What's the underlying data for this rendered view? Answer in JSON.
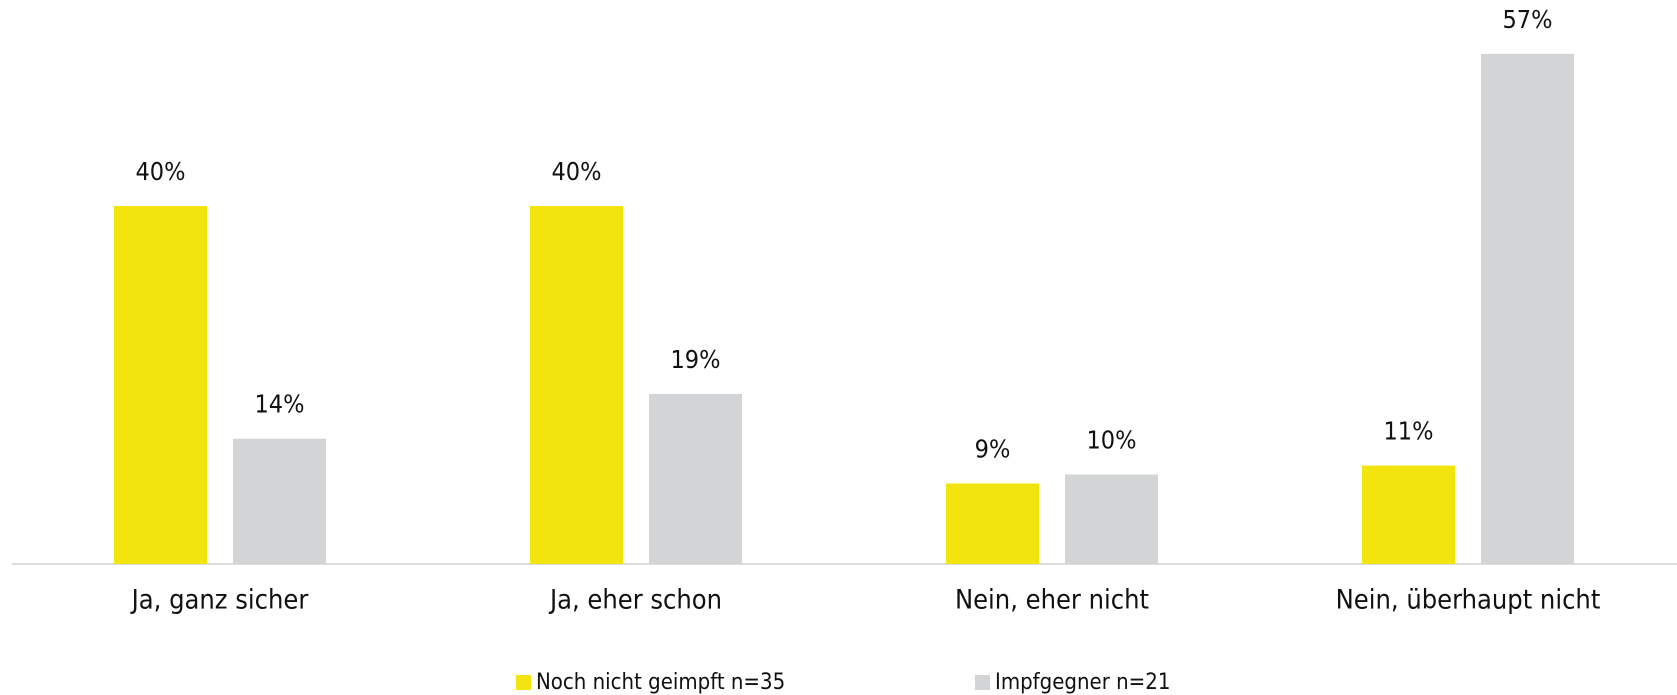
{
  "chart_data": {
    "type": "bar",
    "categories": [
      "Ja, ganz sicher",
      "Ja, eher schon",
      "Nein, eher nicht",
      "Nein, überhaupt nicht"
    ],
    "series": [
      {
        "name": "Noch nicht geimpft n=35",
        "color": "#f2e50f",
        "values": [
          40,
          40,
          9,
          11
        ],
        "value_labels": [
          "40%",
          "40%",
          "9%",
          "11%"
        ]
      },
      {
        "name": "Impfgegner n=21",
        "color": "#d3d4d6",
        "values": [
          14,
          19,
          10,
          57
        ],
        "value_labels": [
          "14%",
          "19%",
          "10%",
          "57%"
        ]
      }
    ],
    "ylim": [
      0,
      60
    ],
    "legend": "bottom"
  }
}
